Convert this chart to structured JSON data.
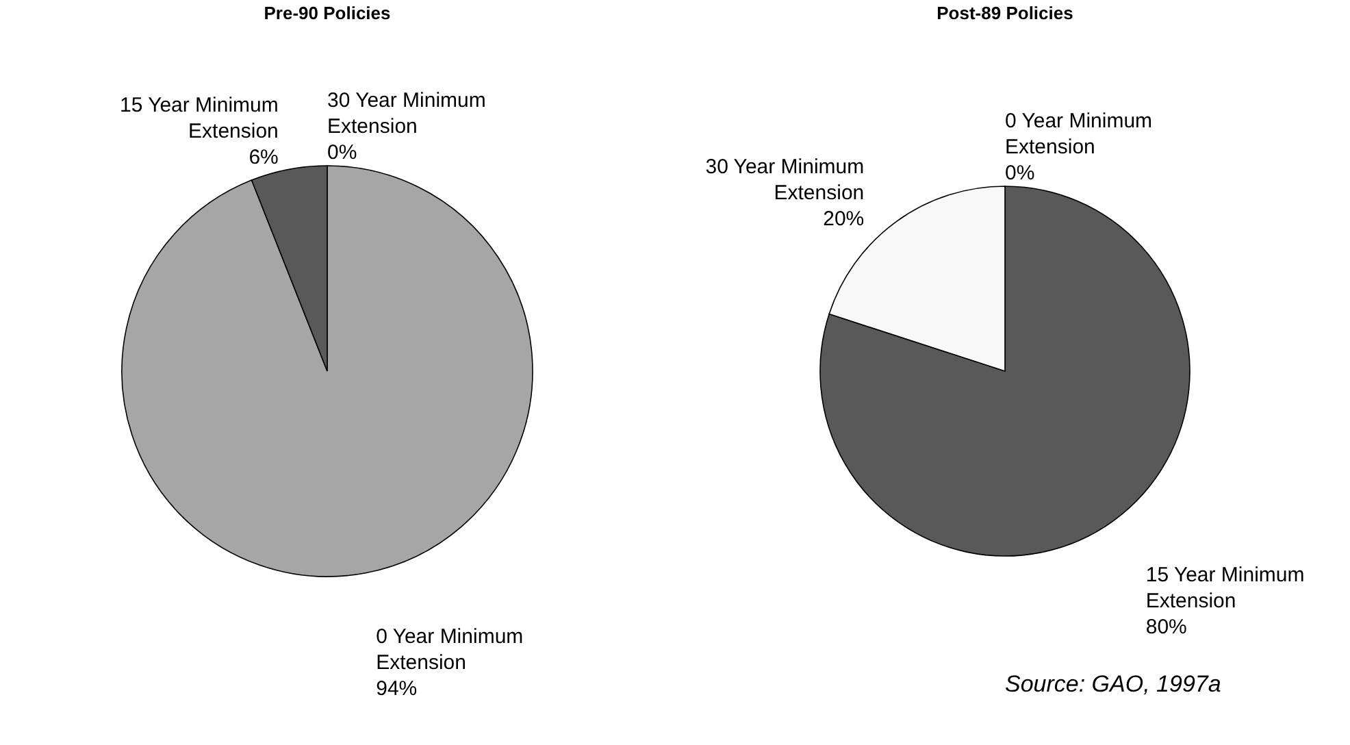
{
  "chart_data": [
    {
      "type": "pie",
      "title": "Pre-90 Policies",
      "categories": [
        "30 Year Minimum Extension",
        "0 Year Minimum Extension",
        "15 Year Minimum Extension"
      ],
      "values": [
        0,
        94,
        6
      ],
      "colors": [
        "#f8f8f8",
        "#a6a6a6",
        "#595959"
      ],
      "value_labels": [
        "0%",
        "94%",
        "6%"
      ]
    },
    {
      "type": "pie",
      "title": "Post-89 Policies",
      "categories": [
        "0 Year Minimum Extension",
        "15 Year Minimum Extension",
        "30 Year Minimum Extension"
      ],
      "values": [
        0,
        80,
        20
      ],
      "colors": [
        "#a6a6a6",
        "#595959",
        "#f8f8f8"
      ],
      "value_labels": [
        "0%",
        "80%",
        "20%"
      ],
      "annotations": [
        "Source: GAO, 1997a"
      ]
    }
  ]
}
